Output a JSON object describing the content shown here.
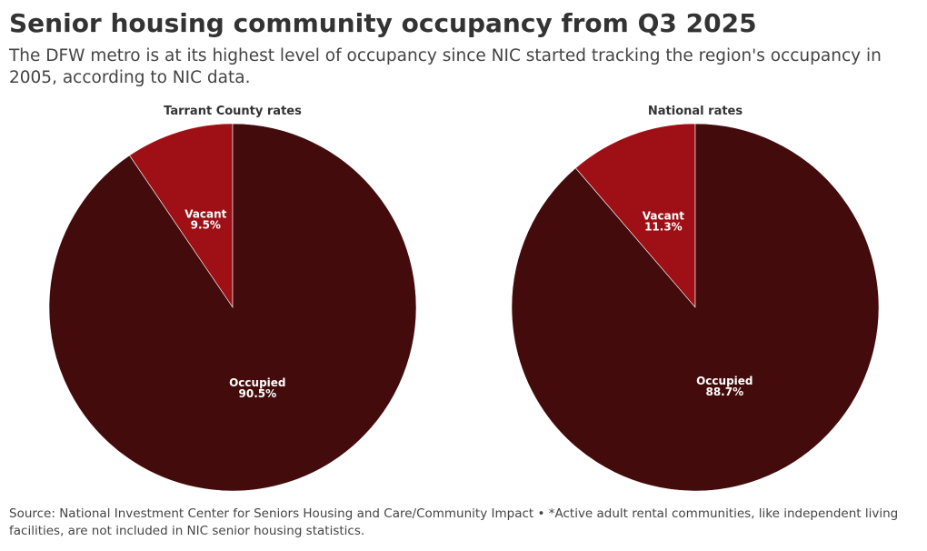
{
  "header": {
    "title": "Senior housing community occupancy from Q3 2025",
    "subtitle": "The DFW metro is at its highest level of occupancy since NIC started tracking the region's occupancy in 2005, according to NIC data."
  },
  "footer": {
    "source": "Source: National Investment Center for Seniors Housing and Care/Community Impact • *Active adult rental communities, like independent living facilities, are not included in NIC senior housing statistics."
  },
  "colors": {
    "occupied": "#430b0b",
    "vacant": "#9e1016"
  },
  "chart_data": [
    {
      "type": "pie",
      "title": "Tarrant County rates",
      "slices": [
        {
          "name": "Vacant",
          "value": 9.5,
          "label": "9.5%"
        },
        {
          "name": "Occupied",
          "value": 90.5,
          "label": "90.5%"
        }
      ]
    },
    {
      "type": "pie",
      "title": "National rates",
      "slices": [
        {
          "name": "Vacant",
          "value": 11.3,
          "label": "11.3%"
        },
        {
          "name": "Occupied",
          "value": 88.7,
          "label": "88.7%"
        }
      ]
    }
  ]
}
